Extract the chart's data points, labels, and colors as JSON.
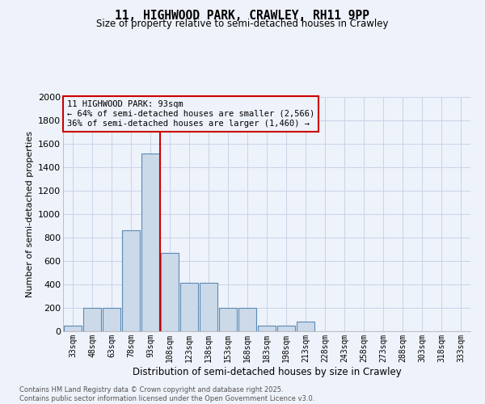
{
  "title_line1": "11, HIGHWOOD PARK, CRAWLEY, RH11 9PP",
  "title_line2": "Size of property relative to semi-detached houses in Crawley",
  "xlabel": "Distribution of semi-detached houses by size in Crawley",
  "ylabel": "Number of semi-detached properties",
  "footer_line1": "Contains HM Land Registry data © Crown copyright and database right 2025.",
  "footer_line2": "Contains public sector information licensed under the Open Government Licence v3.0.",
  "annotation_title": "11 HIGHWOOD PARK: 93sqm",
  "annotation_left": "← 64% of semi-detached houses are smaller (2,566)",
  "annotation_right": "36% of semi-detached houses are larger (1,460) →",
  "categories": [
    "33sqm",
    "48sqm",
    "63sqm",
    "78sqm",
    "93sqm",
    "108sqm",
    "123sqm",
    "138sqm",
    "153sqm",
    "168sqm",
    "183sqm",
    "198sqm",
    "213sqm",
    "228sqm",
    "243sqm",
    "258sqm",
    "273sqm",
    "288sqm",
    "303sqm",
    "318sqm",
    "333sqm"
  ],
  "values": [
    50,
    200,
    200,
    860,
    1520,
    670,
    415,
    415,
    200,
    200,
    50,
    50,
    80,
    0,
    0,
    0,
    0,
    0,
    0,
    0,
    0
  ],
  "bar_color": "#ccd9e8",
  "bar_edge_color": "#5a8ab5",
  "vline_color": "#cc0000",
  "vline_index": 4,
  "ylim": [
    0,
    2000
  ],
  "yticks": [
    0,
    200,
    400,
    600,
    800,
    1000,
    1200,
    1400,
    1600,
    1800,
    2000
  ],
  "grid_color": "#c8d4e8",
  "background_color": "#eef2fa",
  "annotation_box_color": "#cc0000",
  "figsize": [
    6.0,
    5.0
  ],
  "dpi": 100
}
